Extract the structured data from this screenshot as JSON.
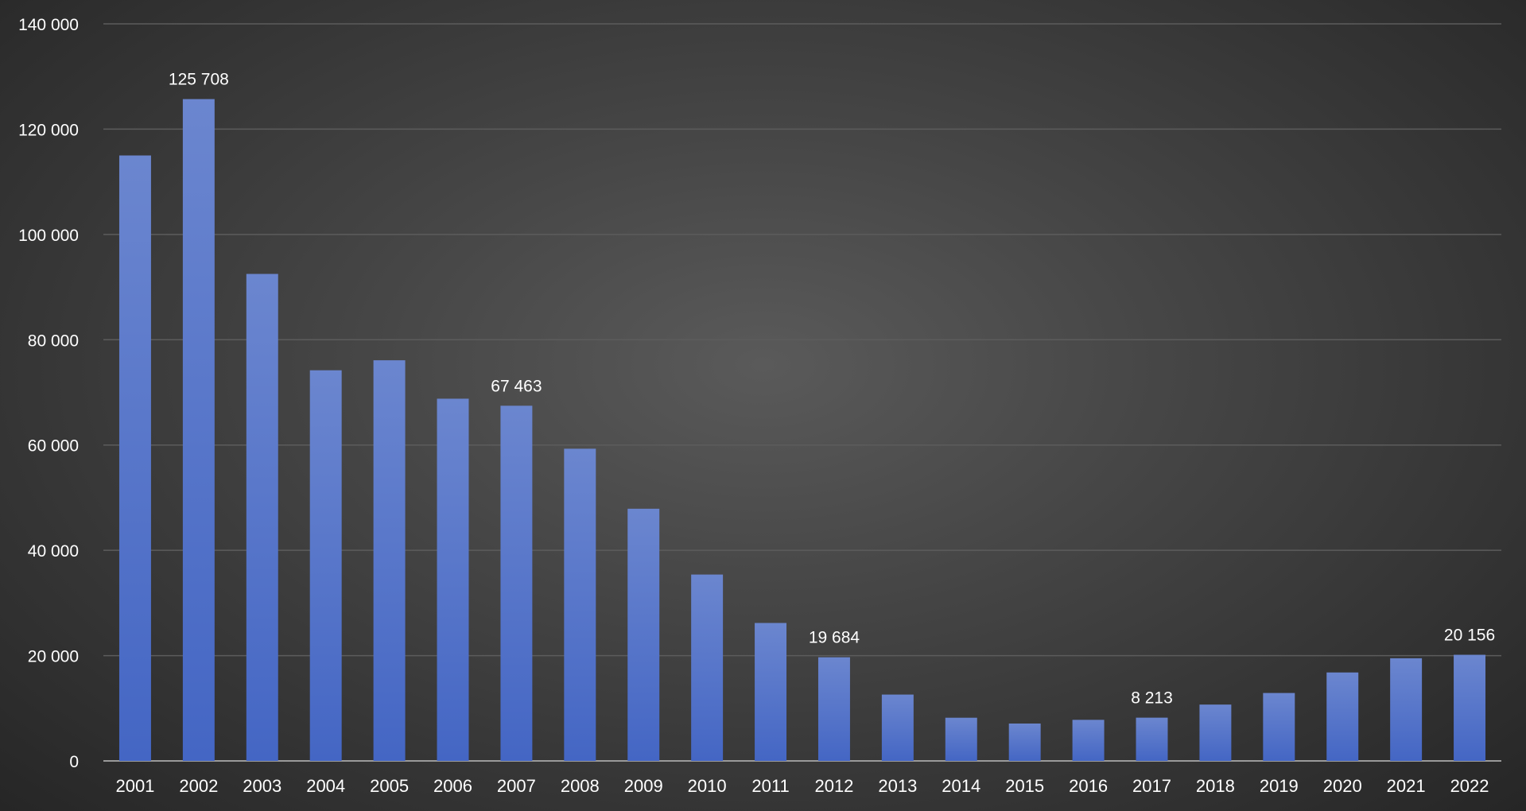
{
  "chart_data": {
    "type": "bar",
    "title": "",
    "xlabel": "",
    "ylabel": "",
    "categories": [
      "2001",
      "2002",
      "2003",
      "2004",
      "2005",
      "2006",
      "2007",
      "2008",
      "2009",
      "2010",
      "2011",
      "2012",
      "2013",
      "2014",
      "2015",
      "2016",
      "2017",
      "2018",
      "2019",
      "2020",
      "2021",
      "2022"
    ],
    "values": [
      115000,
      125708,
      92500,
      74200,
      76100,
      68800,
      67463,
      59300,
      47900,
      35400,
      26200,
      19684,
      12600,
      8200,
      7100,
      7800,
      8213,
      10700,
      12900,
      16800,
      19500,
      20156
    ],
    "data_labels": {
      "2002": "125 708",
      "2007": "67 463",
      "2012": "19 684",
      "2017": "8 213",
      "2022": "20 156"
    },
    "ylim": [
      0,
      140000
    ],
    "yticks": [
      0,
      20000,
      40000,
      60000,
      80000,
      100000,
      120000,
      140000
    ],
    "ytick_labels": [
      "0",
      "20 000",
      "40 000",
      "60 000",
      "80 000",
      "100 000",
      "120 000",
      "140 000"
    ],
    "grid": true,
    "legend": "none",
    "colors": {
      "bar_top": "#6b86cf",
      "bar_bottom": "#4466c4",
      "grid": "#5c5c5c",
      "axis": "#9a9a9a",
      "text": "#ffffff"
    }
  }
}
